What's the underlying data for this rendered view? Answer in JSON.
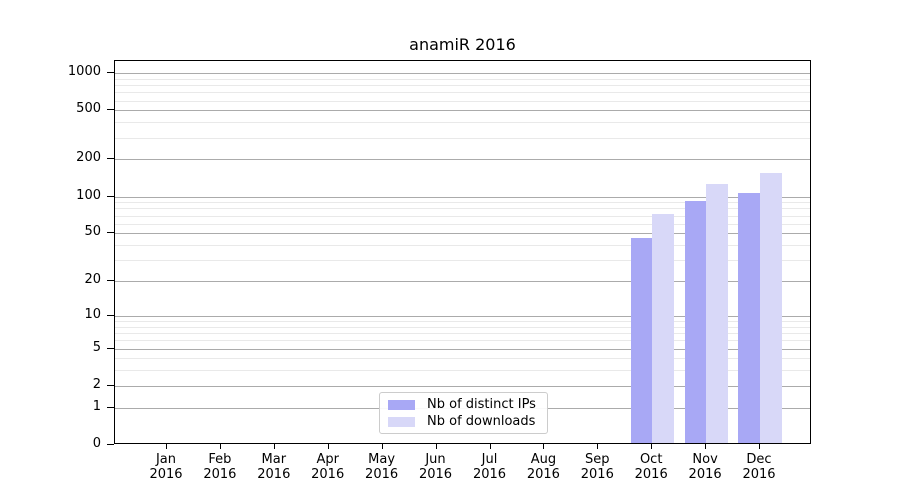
{
  "chart_data": {
    "type": "bar",
    "title": "anamiR 2016",
    "categories": [
      "Jan",
      "Feb",
      "Mar",
      "Apr",
      "May",
      "Jun",
      "Jul",
      "Aug",
      "Sep",
      "Oct",
      "Nov",
      "Dec"
    ],
    "category_year": "2016",
    "series": [
      {
        "name": "Nb of distinct IPs",
        "color": "#a8a8f5",
        "values": [
          0,
          0,
          0,
          0,
          0,
          0,
          0,
          0,
          0,
          44,
          89,
          103
        ]
      },
      {
        "name": "Nb of downloads",
        "color": "#d8d8f8",
        "values": [
          0,
          0,
          0,
          0,
          0,
          0,
          0,
          0,
          0,
          70,
          123,
          150
        ]
      }
    ],
    "xlabel": "",
    "ylabel": "",
    "y_scale": "log1p",
    "y_axis_ticks": [
      0,
      1,
      2,
      5,
      10,
      20,
      50,
      100,
      200,
      500,
      1000
    ],
    "y_minor_gridlines": [
      3,
      4,
      6,
      7,
      8,
      9,
      30,
      40,
      60,
      70,
      80,
      90,
      300,
      400,
      600,
      700,
      800,
      900
    ],
    "y_max": 1250,
    "grid": true,
    "legend_position": "lower center"
  },
  "colors": {
    "major_gridline": "#ababab",
    "minor_gridline": "#e9e9e9",
    "axis": "#000000",
    "background": "#ffffff"
  }
}
